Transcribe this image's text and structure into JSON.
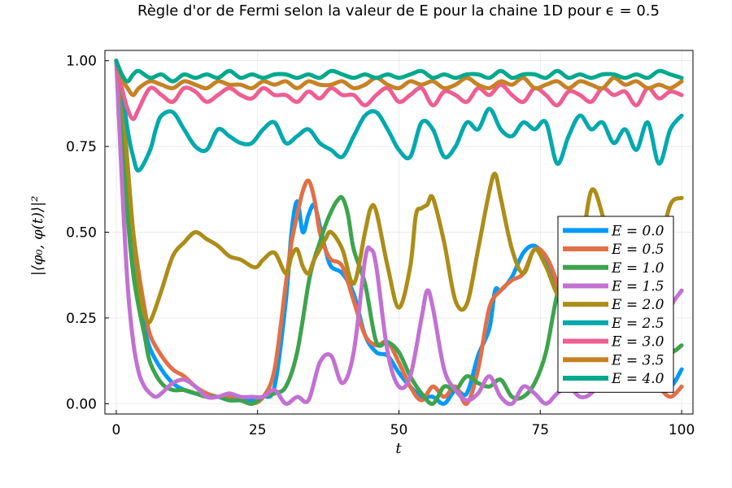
{
  "chart_data": {
    "type": "line",
    "title": "Règle d'or de Fermi selon la valeur de E pour la chaine 1D pour ϵ = 0.5",
    "xlabel": "t",
    "ylabel": "|⟨φ₀, φ(t)⟩|²",
    "xlim": [
      -2,
      102
    ],
    "ylim": [
      -0.03,
      1.03
    ],
    "xticks": [
      0,
      25,
      50,
      75,
      100
    ],
    "xtick_labels": [
      "0",
      "25",
      "50",
      "75",
      "100"
    ],
    "yticks": [
      0.0,
      0.25,
      0.5,
      0.75,
      1.0
    ],
    "ytick_labels": [
      "0.00",
      "0.25",
      "0.50",
      "0.75",
      "1.00"
    ],
    "grid": true,
    "legend_position": "right",
    "series": [
      {
        "name": "E = 0.0",
        "color": "#009AFA",
        "x": [
          0,
          1,
          2,
          3,
          4,
          5,
          6,
          8,
          10,
          12,
          14,
          16,
          18,
          20,
          22,
          24,
          26,
          28,
          30,
          31,
          32,
          33,
          34,
          35,
          36,
          37,
          38,
          40,
          42,
          44,
          46,
          48,
          50,
          52,
          54,
          56,
          58,
          60,
          62,
          64,
          66,
          67,
          68,
          70,
          72,
          74,
          76,
          78,
          80,
          82,
          84,
          86,
          88,
          90,
          92,
          94,
          96,
          98,
          100
        ],
        "y": [
          1.0,
          0.82,
          0.6,
          0.42,
          0.3,
          0.22,
          0.16,
          0.1,
          0.06,
          0.04,
          0.03,
          0.02,
          0.02,
          0.01,
          0.01,
          0.01,
          0.02,
          0.05,
          0.3,
          0.5,
          0.59,
          0.5,
          0.55,
          0.58,
          0.52,
          0.45,
          0.4,
          0.38,
          0.32,
          0.2,
          0.15,
          0.14,
          0.09,
          0.05,
          0.02,
          0.02,
          0.0,
          0.04,
          0.03,
          0.14,
          0.22,
          0.33,
          0.33,
          0.37,
          0.44,
          0.46,
          0.42,
          0.32,
          0.25,
          0.28,
          0.35,
          0.45,
          0.3,
          0.2,
          0.1,
          0.12,
          0.08,
          0.05,
          0.1
        ]
      },
      {
        "name": "E = 0.5",
        "color": "#E26F46",
        "x": [
          0,
          1,
          2,
          3,
          4,
          5,
          6,
          8,
          10,
          12,
          14,
          16,
          18,
          20,
          22,
          24,
          26,
          28,
          30,
          31,
          32,
          33,
          34,
          35,
          36,
          37,
          38,
          40,
          42,
          44,
          46,
          48,
          50,
          52,
          54,
          56,
          58,
          60,
          62,
          64,
          66,
          68,
          70,
          72,
          74,
          76,
          78,
          80,
          82,
          84,
          86,
          88,
          90,
          92,
          94,
          96,
          98,
          100
        ],
        "y": [
          1.0,
          0.85,
          0.65,
          0.5,
          0.38,
          0.28,
          0.2,
          0.14,
          0.1,
          0.08,
          0.05,
          0.03,
          0.02,
          0.02,
          0.01,
          0.0,
          0.02,
          0.1,
          0.35,
          0.47,
          0.55,
          0.62,
          0.65,
          0.6,
          0.5,
          0.45,
          0.42,
          0.4,
          0.3,
          0.2,
          0.17,
          0.18,
          0.12,
          0.05,
          0.01,
          0.05,
          0.02,
          0.05,
          0.0,
          0.1,
          0.28,
          0.33,
          0.36,
          0.38,
          0.45,
          0.43,
          0.35,
          0.22,
          0.15,
          0.2,
          0.25,
          0.2,
          0.12,
          0.08,
          0.1,
          0.05,
          0.02,
          0.05
        ]
      },
      {
        "name": "E = 1.0",
        "color": "#3DA44D",
        "x": [
          0,
          1,
          2,
          3,
          4,
          5,
          6,
          8,
          10,
          12,
          14,
          16,
          18,
          20,
          22,
          24,
          26,
          28,
          30,
          32,
          34,
          35,
          36,
          37,
          38,
          39,
          40,
          41,
          42,
          44,
          46,
          48,
          50,
          52,
          54,
          56,
          58,
          60,
          62,
          64,
          66,
          68,
          70,
          72,
          74,
          76,
          78,
          80,
          82,
          84,
          86,
          88,
          90,
          92,
          94,
          96,
          98,
          100
        ],
        "y": [
          1.0,
          0.8,
          0.55,
          0.38,
          0.28,
          0.2,
          0.12,
          0.06,
          0.04,
          0.04,
          0.03,
          0.02,
          0.02,
          0.01,
          0.01,
          0.0,
          0.02,
          0.03,
          0.05,
          0.15,
          0.35,
          0.42,
          0.47,
          0.52,
          0.56,
          0.59,
          0.6,
          0.55,
          0.45,
          0.35,
          0.18,
          0.18,
          0.15,
          0.08,
          0.03,
          0.0,
          0.05,
          0.04,
          0.08,
          0.06,
          0.05,
          0.07,
          0.02,
          0.02,
          0.06,
          0.15,
          0.32,
          0.42,
          0.48,
          0.45,
          0.4,
          0.38,
          0.32,
          0.25,
          0.2,
          0.18,
          0.15,
          0.17
        ]
      },
      {
        "name": "E = 1.5",
        "color": "#C271D2",
        "x": [
          0,
          1,
          2,
          3,
          4,
          5,
          6,
          7,
          8,
          10,
          12,
          14,
          16,
          18,
          20,
          22,
          24,
          26,
          28,
          30,
          32,
          34,
          36,
          38,
          40,
          42,
          44,
          45,
          46,
          48,
          50,
          52,
          54,
          55,
          56,
          58,
          60,
          62,
          64,
          66,
          68,
          70,
          72,
          74,
          76,
          78,
          80,
          82,
          84,
          86,
          88,
          90,
          92,
          94,
          96,
          98,
          100
        ],
        "y": [
          1.0,
          0.65,
          0.35,
          0.18,
          0.09,
          0.05,
          0.03,
          0.02,
          0.03,
          0.06,
          0.07,
          0.05,
          0.02,
          0.02,
          0.03,
          0.02,
          0.02,
          0.02,
          0.04,
          0.0,
          0.02,
          0.01,
          0.12,
          0.14,
          0.06,
          0.15,
          0.42,
          0.45,
          0.4,
          0.15,
          0.05,
          0.08,
          0.25,
          0.33,
          0.28,
          0.1,
          0.04,
          0.01,
          0.03,
          0.08,
          0.02,
          0.0,
          0.05,
          0.03,
          0.0,
          0.03,
          0.05,
          0.02,
          0.03,
          0.08,
          0.12,
          0.15,
          0.2,
          0.24,
          0.18,
          0.28,
          0.33
        ]
      },
      {
        "name": "E = 2.0",
        "color": "#AC8D18",
        "x": [
          0,
          1,
          2,
          3,
          4,
          5,
          6,
          8,
          10,
          12,
          14,
          16,
          18,
          20,
          22,
          24,
          25,
          26,
          28,
          30,
          31,
          32,
          33,
          34,
          35,
          36,
          37,
          38,
          40,
          42,
          44,
          45,
          46,
          48,
          50,
          52,
          53,
          54,
          55,
          56,
          58,
          60,
          62,
          64,
          66,
          67,
          68,
          70,
          72,
          74,
          76,
          78,
          80,
          82,
          84,
          86,
          88,
          90,
          92,
          94,
          96,
          98,
          100
        ],
        "y": [
          1.0,
          0.9,
          0.7,
          0.5,
          0.35,
          0.26,
          0.24,
          0.33,
          0.43,
          0.47,
          0.5,
          0.48,
          0.46,
          0.43,
          0.42,
          0.4,
          0.4,
          0.42,
          0.44,
          0.38,
          0.43,
          0.45,
          0.4,
          0.38,
          0.42,
          0.45,
          0.48,
          0.5,
          0.45,
          0.35,
          0.5,
          0.57,
          0.56,
          0.4,
          0.28,
          0.4,
          0.55,
          0.57,
          0.58,
          0.6,
          0.47,
          0.3,
          0.29,
          0.45,
          0.62,
          0.67,
          0.6,
          0.45,
          0.38,
          0.45,
          0.4,
          0.32,
          0.3,
          0.42,
          0.62,
          0.55,
          0.4,
          0.47,
          0.3,
          0.35,
          0.45,
          0.58,
          0.6
        ]
      },
      {
        "name": "E = 2.5",
        "color": "#00A9AD",
        "x": [
          0,
          1,
          2,
          3,
          4,
          6,
          7,
          8,
          10,
          12,
          14,
          16,
          18,
          20,
          22,
          24,
          26,
          28,
          30,
          32,
          34,
          36,
          38,
          40,
          42,
          44,
          46,
          48,
          50,
          52,
          54,
          56,
          58,
          60,
          62,
          64,
          66,
          68,
          70,
          72,
          74,
          76,
          78,
          80,
          82,
          84,
          86,
          88,
          90,
          92,
          94,
          96,
          98,
          100
        ],
        "y": [
          1.0,
          0.92,
          0.8,
          0.72,
          0.68,
          0.74,
          0.8,
          0.84,
          0.85,
          0.8,
          0.75,
          0.74,
          0.8,
          0.78,
          0.76,
          0.76,
          0.8,
          0.82,
          0.76,
          0.78,
          0.8,
          0.76,
          0.74,
          0.72,
          0.78,
          0.84,
          0.85,
          0.8,
          0.74,
          0.72,
          0.82,
          0.8,
          0.72,
          0.75,
          0.82,
          0.8,
          0.86,
          0.8,
          0.78,
          0.82,
          0.8,
          0.82,
          0.7,
          0.78,
          0.84,
          0.8,
          0.82,
          0.76,
          0.8,
          0.74,
          0.82,
          0.7,
          0.8,
          0.84
        ]
      },
      {
        "name": "E = 3.0",
        "color": "#ED5E93",
        "x": [
          0,
          1,
          2,
          3,
          4,
          6,
          8,
          10,
          12,
          14,
          16,
          18,
          20,
          22,
          24,
          26,
          28,
          30,
          32,
          34,
          36,
          38,
          40,
          42,
          44,
          46,
          48,
          50,
          52,
          54,
          56,
          58,
          60,
          62,
          64,
          66,
          68,
          70,
          72,
          74,
          76,
          78,
          80,
          82,
          84,
          86,
          88,
          90,
          92,
          94,
          96,
          98,
          100
        ],
        "y": [
          1.0,
          0.92,
          0.86,
          0.83,
          0.86,
          0.92,
          0.9,
          0.88,
          0.92,
          0.91,
          0.88,
          0.9,
          0.92,
          0.9,
          0.89,
          0.92,
          0.9,
          0.9,
          0.88,
          0.91,
          0.89,
          0.92,
          0.9,
          0.9,
          0.87,
          0.9,
          0.92,
          0.88,
          0.9,
          0.92,
          0.87,
          0.91,
          0.9,
          0.88,
          0.92,
          0.9,
          0.93,
          0.9,
          0.88,
          0.92,
          0.9,
          0.87,
          0.91,
          0.9,
          0.88,
          0.92,
          0.9,
          0.91,
          0.87,
          0.92,
          0.89,
          0.91,
          0.9
        ]
      },
      {
        "name": "E = 3.5",
        "color": "#C68225",
        "x": [
          0,
          1,
          2,
          3,
          4,
          6,
          8,
          10,
          12,
          14,
          16,
          18,
          20,
          22,
          24,
          26,
          28,
          30,
          32,
          34,
          36,
          38,
          40,
          42,
          44,
          46,
          48,
          50,
          52,
          54,
          56,
          58,
          60,
          62,
          64,
          66,
          68,
          70,
          72,
          74,
          76,
          78,
          80,
          82,
          84,
          86,
          88,
          90,
          92,
          94,
          96,
          98,
          100
        ],
        "y": [
          1.0,
          0.95,
          0.92,
          0.9,
          0.92,
          0.94,
          0.93,
          0.92,
          0.94,
          0.93,
          0.92,
          0.94,
          0.93,
          0.93,
          0.92,
          0.94,
          0.93,
          0.94,
          0.92,
          0.94,
          0.93,
          0.93,
          0.94,
          0.92,
          0.93,
          0.95,
          0.93,
          0.92,
          0.94,
          0.93,
          0.94,
          0.92,
          0.93,
          0.95,
          0.93,
          0.92,
          0.94,
          0.93,
          0.95,
          0.92,
          0.93,
          0.94,
          0.92,
          0.94,
          0.93,
          0.92,
          0.95,
          0.93,
          0.94,
          0.92,
          0.93,
          0.92,
          0.94
        ]
      },
      {
        "name": "E = 4.0",
        "color": "#00A98D",
        "x": [
          0,
          1,
          2,
          3,
          4,
          6,
          8,
          10,
          12,
          14,
          16,
          18,
          20,
          22,
          24,
          26,
          28,
          30,
          32,
          34,
          36,
          38,
          40,
          42,
          44,
          46,
          48,
          50,
          52,
          54,
          56,
          58,
          60,
          62,
          64,
          66,
          68,
          70,
          72,
          74,
          76,
          78,
          80,
          82,
          84,
          86,
          88,
          90,
          92,
          94,
          96,
          98,
          100
        ],
        "y": [
          1.0,
          0.96,
          0.94,
          0.96,
          0.97,
          0.95,
          0.96,
          0.94,
          0.96,
          0.95,
          0.96,
          0.95,
          0.97,
          0.95,
          0.96,
          0.95,
          0.96,
          0.96,
          0.95,
          0.96,
          0.95,
          0.97,
          0.96,
          0.95,
          0.96,
          0.95,
          0.96,
          0.95,
          0.96,
          0.97,
          0.95,
          0.96,
          0.95,
          0.96,
          0.96,
          0.95,
          0.97,
          0.95,
          0.96,
          0.96,
          0.95,
          0.97,
          0.95,
          0.96,
          0.95,
          0.96,
          0.96,
          0.95,
          0.96,
          0.95,
          0.97,
          0.96,
          0.95
        ]
      }
    ]
  }
}
